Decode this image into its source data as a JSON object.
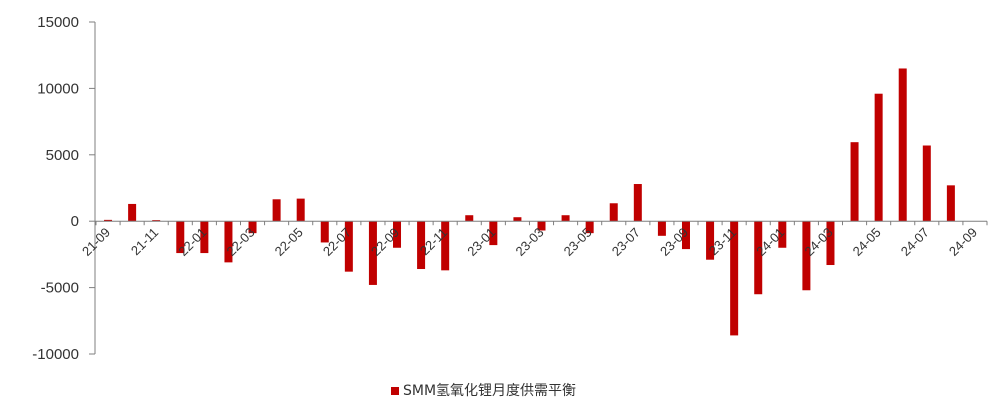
{
  "chart_data": {
    "type": "bar",
    "x": [
      "21-09",
      "21-10",
      "21-11",
      "21-12",
      "22-01",
      "22-02",
      "22-03",
      "22-04",
      "22-05",
      "22-06",
      "22-07",
      "22-08",
      "22-09",
      "22-10",
      "22-11",
      "22-12",
      "23-01",
      "23-02",
      "23-03",
      "23-04",
      "23-05",
      "23-06",
      "23-07",
      "23-08",
      "23-09",
      "23-10",
      "23-11",
      "23-12",
      "24-01",
      "24-02",
      "24-03",
      "24-04",
      "24-05",
      "24-06",
      "24-07",
      "24-08",
      "24-09"
    ],
    "tick_labels": [
      "21-09",
      "21-11",
      "22-01",
      "22-03",
      "22-05",
      "22-07",
      "22-09",
      "22-11",
      "23-01",
      "23-03",
      "23-05",
      "23-07",
      "23-09",
      "23-11",
      "24-01",
      "24-03",
      "24-05",
      "24-07",
      "24-09"
    ],
    "series": [
      {
        "name": "SMM氢氧化锂月度供需平衡",
        "color": "#c00000",
        "values": [
          100,
          1300,
          80,
          -2400,
          -2400,
          -3100,
          -900,
          1650,
          1700,
          -1600,
          -3800,
          -4800,
          -2000,
          -3600,
          -3700,
          450,
          -1800,
          300,
          -700,
          450,
          -900,
          1350,
          2800,
          -1100,
          -2100,
          -2900,
          -8600,
          -5500,
          -2000,
          -5200,
          -3300,
          5950,
          9600,
          11500,
          5700,
          2700,
          0
        ]
      }
    ],
    "ylim": [
      -10000,
      15000
    ],
    "yticks": [
      "15000",
      "10000",
      "5000",
      "0",
      "-5000",
      "-10000"
    ],
    "ytick_values": [
      15000,
      10000,
      5000,
      0,
      -5000,
      -10000
    ],
    "legend": {
      "position": "bottom",
      "label": "SMM氢氧化锂月度供需平衡"
    },
    "grid": false
  }
}
